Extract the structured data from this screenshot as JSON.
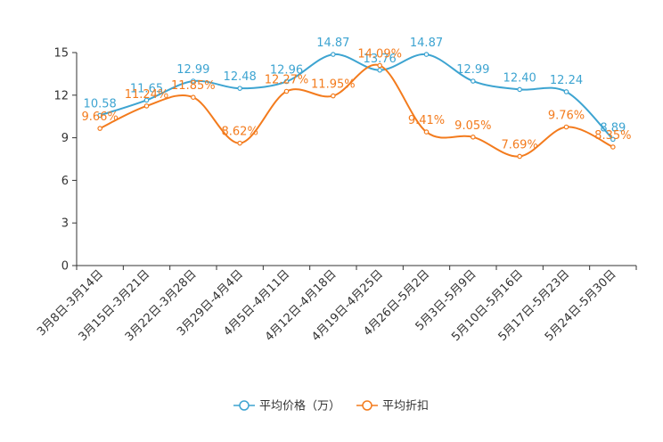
{
  "chart_data": {
    "type": "line",
    "categories": [
      "3月8日-3月14日",
      "3月15日-3月21日",
      "3月22日-3月28日",
      "3月29日-4月4日",
      "4月5日-4月11日",
      "4月12日-4月18日",
      "4月19日-4月25日",
      "4月26日-5月2日",
      "5月3日-5月9日",
      "5月10日-5月16日",
      "5月17日-5月23日",
      "5月24日-5月30日"
    ],
    "ylim": [
      0,
      15
    ],
    "yticks": [
      0,
      3,
      6,
      9,
      12,
      15
    ],
    "series": [
      {
        "name": "平均价格（万）",
        "color": "#3da4d1",
        "values": [
          10.58,
          11.65,
          12.99,
          12.48,
          12.96,
          14.87,
          13.76,
          14.87,
          12.99,
          12.4,
          12.24,
          8.89
        ],
        "labels": [
          "10.58",
          "11.65",
          "12.99",
          "12.48",
          "12.96",
          "14.87",
          "13.76",
          "14.87",
          "12.99",
          "12.40",
          "12.24",
          "8.89"
        ]
      },
      {
        "name": "平均折扣",
        "color": "#f37b1d",
        "values": [
          9.66,
          11.24,
          11.85,
          8.62,
          12.27,
          11.95,
          14.09,
          9.41,
          9.05,
          7.69,
          9.76,
          8.35
        ],
        "labels": [
          "9.66%",
          "11.24%",
          "11.85%",
          "8.62%",
          "12.27%",
          "11.95%",
          "14.09%",
          "9.41%",
          "9.05%",
          "7.69%",
          "9.76%",
          "8.35%"
        ]
      }
    ],
    "legend": [
      "平均价格（万）",
      "平均折扣"
    ],
    "grid": false
  }
}
